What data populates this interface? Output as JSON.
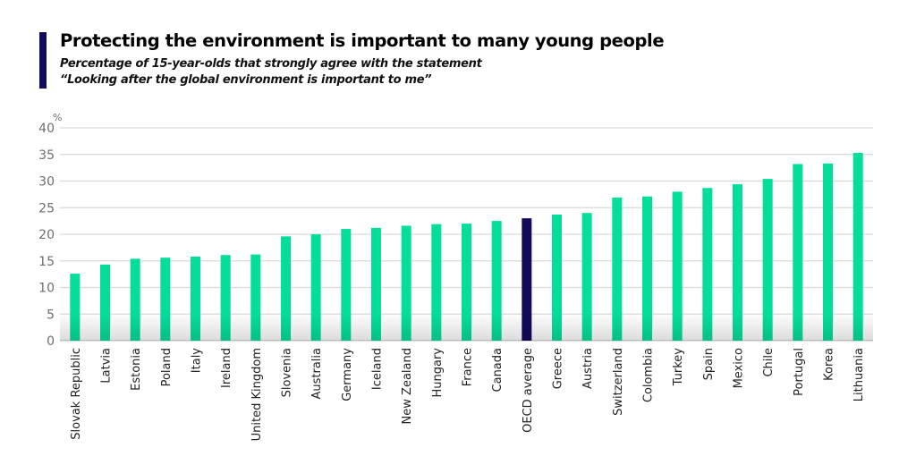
{
  "header": {
    "title": "Protecting the environment is important to many young people",
    "subtitle_line1": "Percentage of 15-year-olds that strongly agree with the statement",
    "subtitle_line2": "“Looking after the global environment is important to me”"
  },
  "colors": {
    "accent": "#120a5a",
    "bar": "#05dd9b",
    "highlight_bar": "#120a5a",
    "grid": "#d9d9d9",
    "axis_text": "#6e6e6e"
  },
  "chart_data": {
    "type": "bar",
    "title": "Protecting the environment is important to many young people",
    "subtitle": "Percentage of 15-year-olds that strongly agree with the statement “Looking after the global environment is important to me”",
    "xlabel": "",
    "ylabel": "%",
    "ylim": [
      0,
      40
    ],
    "yticks": [
      0,
      5,
      10,
      15,
      20,
      25,
      30,
      35,
      40
    ],
    "grid": true,
    "legend": "none",
    "highlight": "OECD average",
    "categories": [
      "Slovak Republic",
      "Latvia",
      "Estonia",
      "Poland",
      "Italy",
      "Ireland",
      "United Kingdom",
      "Slovenia",
      "Australia",
      "Germany",
      "Iceland",
      "New Zealand",
      "Hungary",
      "France",
      "Canada",
      "OECD average",
      "Greece",
      "Austria",
      "Switzerland",
      "Colombia",
      "Turkey",
      "Spain",
      "Mexico",
      "Chile",
      "Portugal",
      "Korea",
      "Lithuania"
    ],
    "values": [
      12.6,
      14.3,
      15.4,
      15.6,
      15.8,
      16.1,
      16.2,
      19.6,
      20.0,
      21.0,
      21.2,
      21.6,
      21.9,
      22.0,
      22.5,
      23.0,
      23.7,
      24.0,
      26.9,
      27.1,
      28.0,
      28.7,
      29.4,
      30.4,
      33.2,
      33.3,
      35.3
    ]
  }
}
